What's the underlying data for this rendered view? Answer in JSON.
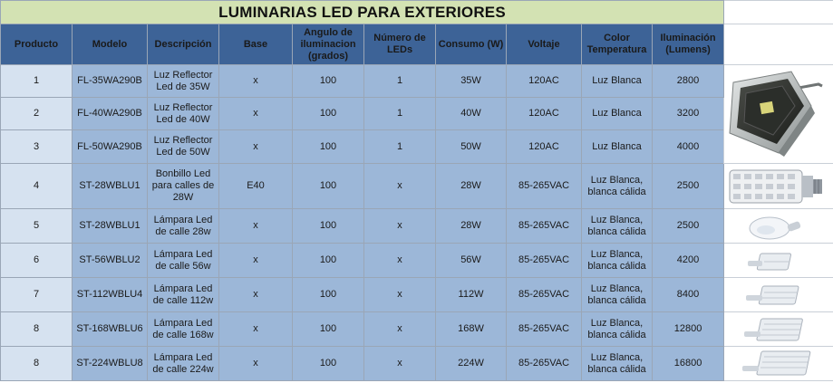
{
  "title": "LUMINARIAS LED PARA EXTERIORES",
  "headers": [
    "Producto",
    "Modelo",
    "Descripción",
    "Base",
    "Angulo de iluminacion (grados)",
    "Número de LEDs",
    "Consumo (W)",
    "Voltaje",
    "Color Temperatura",
    "Iluminación (Lumens)"
  ],
  "rows": [
    {
      "producto": "1",
      "modelo": "FL-35WA290B",
      "descripcion": "Luz Reflector Led de 35W",
      "base": "x",
      "angulo": "100",
      "leds": "1",
      "consumo": "35W",
      "voltaje": "120AC",
      "color": "Luz Blanca",
      "lumens": "2800"
    },
    {
      "producto": "2",
      "modelo": "FL-40WA290B",
      "descripcion": "Luz Reflector Led de 40W",
      "base": "x",
      "angulo": "100",
      "leds": "1",
      "consumo": "40W",
      "voltaje": "120AC",
      "color": "Luz Blanca",
      "lumens": "3200"
    },
    {
      "producto": "3",
      "modelo": "FL-50WA290B",
      "descripcion": "Luz Reflector Led de 50W",
      "base": "x",
      "angulo": "100",
      "leds": "1",
      "consumo": "50W",
      "voltaje": "120AC",
      "color": "Luz Blanca",
      "lumens": "4000"
    },
    {
      "producto": "4",
      "modelo": "ST-28WBLU1",
      "descripcion": "Bonbillo Led para calles de 28W",
      "base": "E40",
      "angulo": "100",
      "leds": "x",
      "consumo": "28W",
      "voltaje": "85-265VAC",
      "color": "Luz Blanca, blanca cálida",
      "lumens": "2500"
    },
    {
      "producto": "5",
      "modelo": "ST-28WBLU1",
      "descripcion": "Lámpara Led de calle 28w",
      "base": "x",
      "angulo": "100",
      "leds": "x",
      "consumo": "28W",
      "voltaje": "85-265VAC",
      "color": "Luz Blanca, blanca cálida",
      "lumens": "2500"
    },
    {
      "producto": "6",
      "modelo": "ST-56WBLU2",
      "descripcion": "Lámpara Led de calle 56w",
      "base": "x",
      "angulo": "100",
      "leds": "x",
      "consumo": "56W",
      "voltaje": "85-265VAC",
      "color": "Luz Blanca, blanca cálida",
      "lumens": "4200"
    },
    {
      "producto": "7",
      "modelo": "ST-112WBLU4",
      "descripcion": "Lámpara Led de calle 112w",
      "base": "x",
      "angulo": "100",
      "leds": "x",
      "consumo": "112W",
      "voltaje": "85-265VAC",
      "color": "Luz Blanca, blanca cálida",
      "lumens": "8400"
    },
    {
      "producto": "8",
      "modelo": "ST-168WBLU6",
      "descripcion": "Lámpara Led de calle 168w",
      "base": "x",
      "angulo": "100",
      "leds": "x",
      "consumo": "168W",
      "voltaje": "85-265VAC",
      "color": "Luz Blanca, blanca cálida",
      "lumens": "12800"
    },
    {
      "producto": "8",
      "modelo": "ST-224WBLU8",
      "descripcion": "Lámpara Led de calle 224w",
      "base": "x",
      "angulo": "100",
      "leds": "x",
      "consumo": "224W",
      "voltaje": "85-265VAC",
      "color": "Luz Blanca, blanca cálida",
      "lumens": "16800"
    }
  ],
  "images": [
    {
      "icon": "floodlight-image"
    },
    {
      "icon": "led-corn-bulb-image"
    },
    {
      "icon": "street-lamp-28w-image"
    },
    {
      "icon": "street-lamp-56w-image"
    },
    {
      "icon": "street-lamp-112w-image"
    },
    {
      "icon": "street-lamp-168w-image"
    },
    {
      "icon": "street-lamp-224w-image"
    }
  ],
  "colors": {
    "title_bg": "#d3e2b3",
    "header_bg": "#3d6397",
    "cell_bg": "#9cb7d8",
    "first_col_bg": "#d6e2f0"
  }
}
